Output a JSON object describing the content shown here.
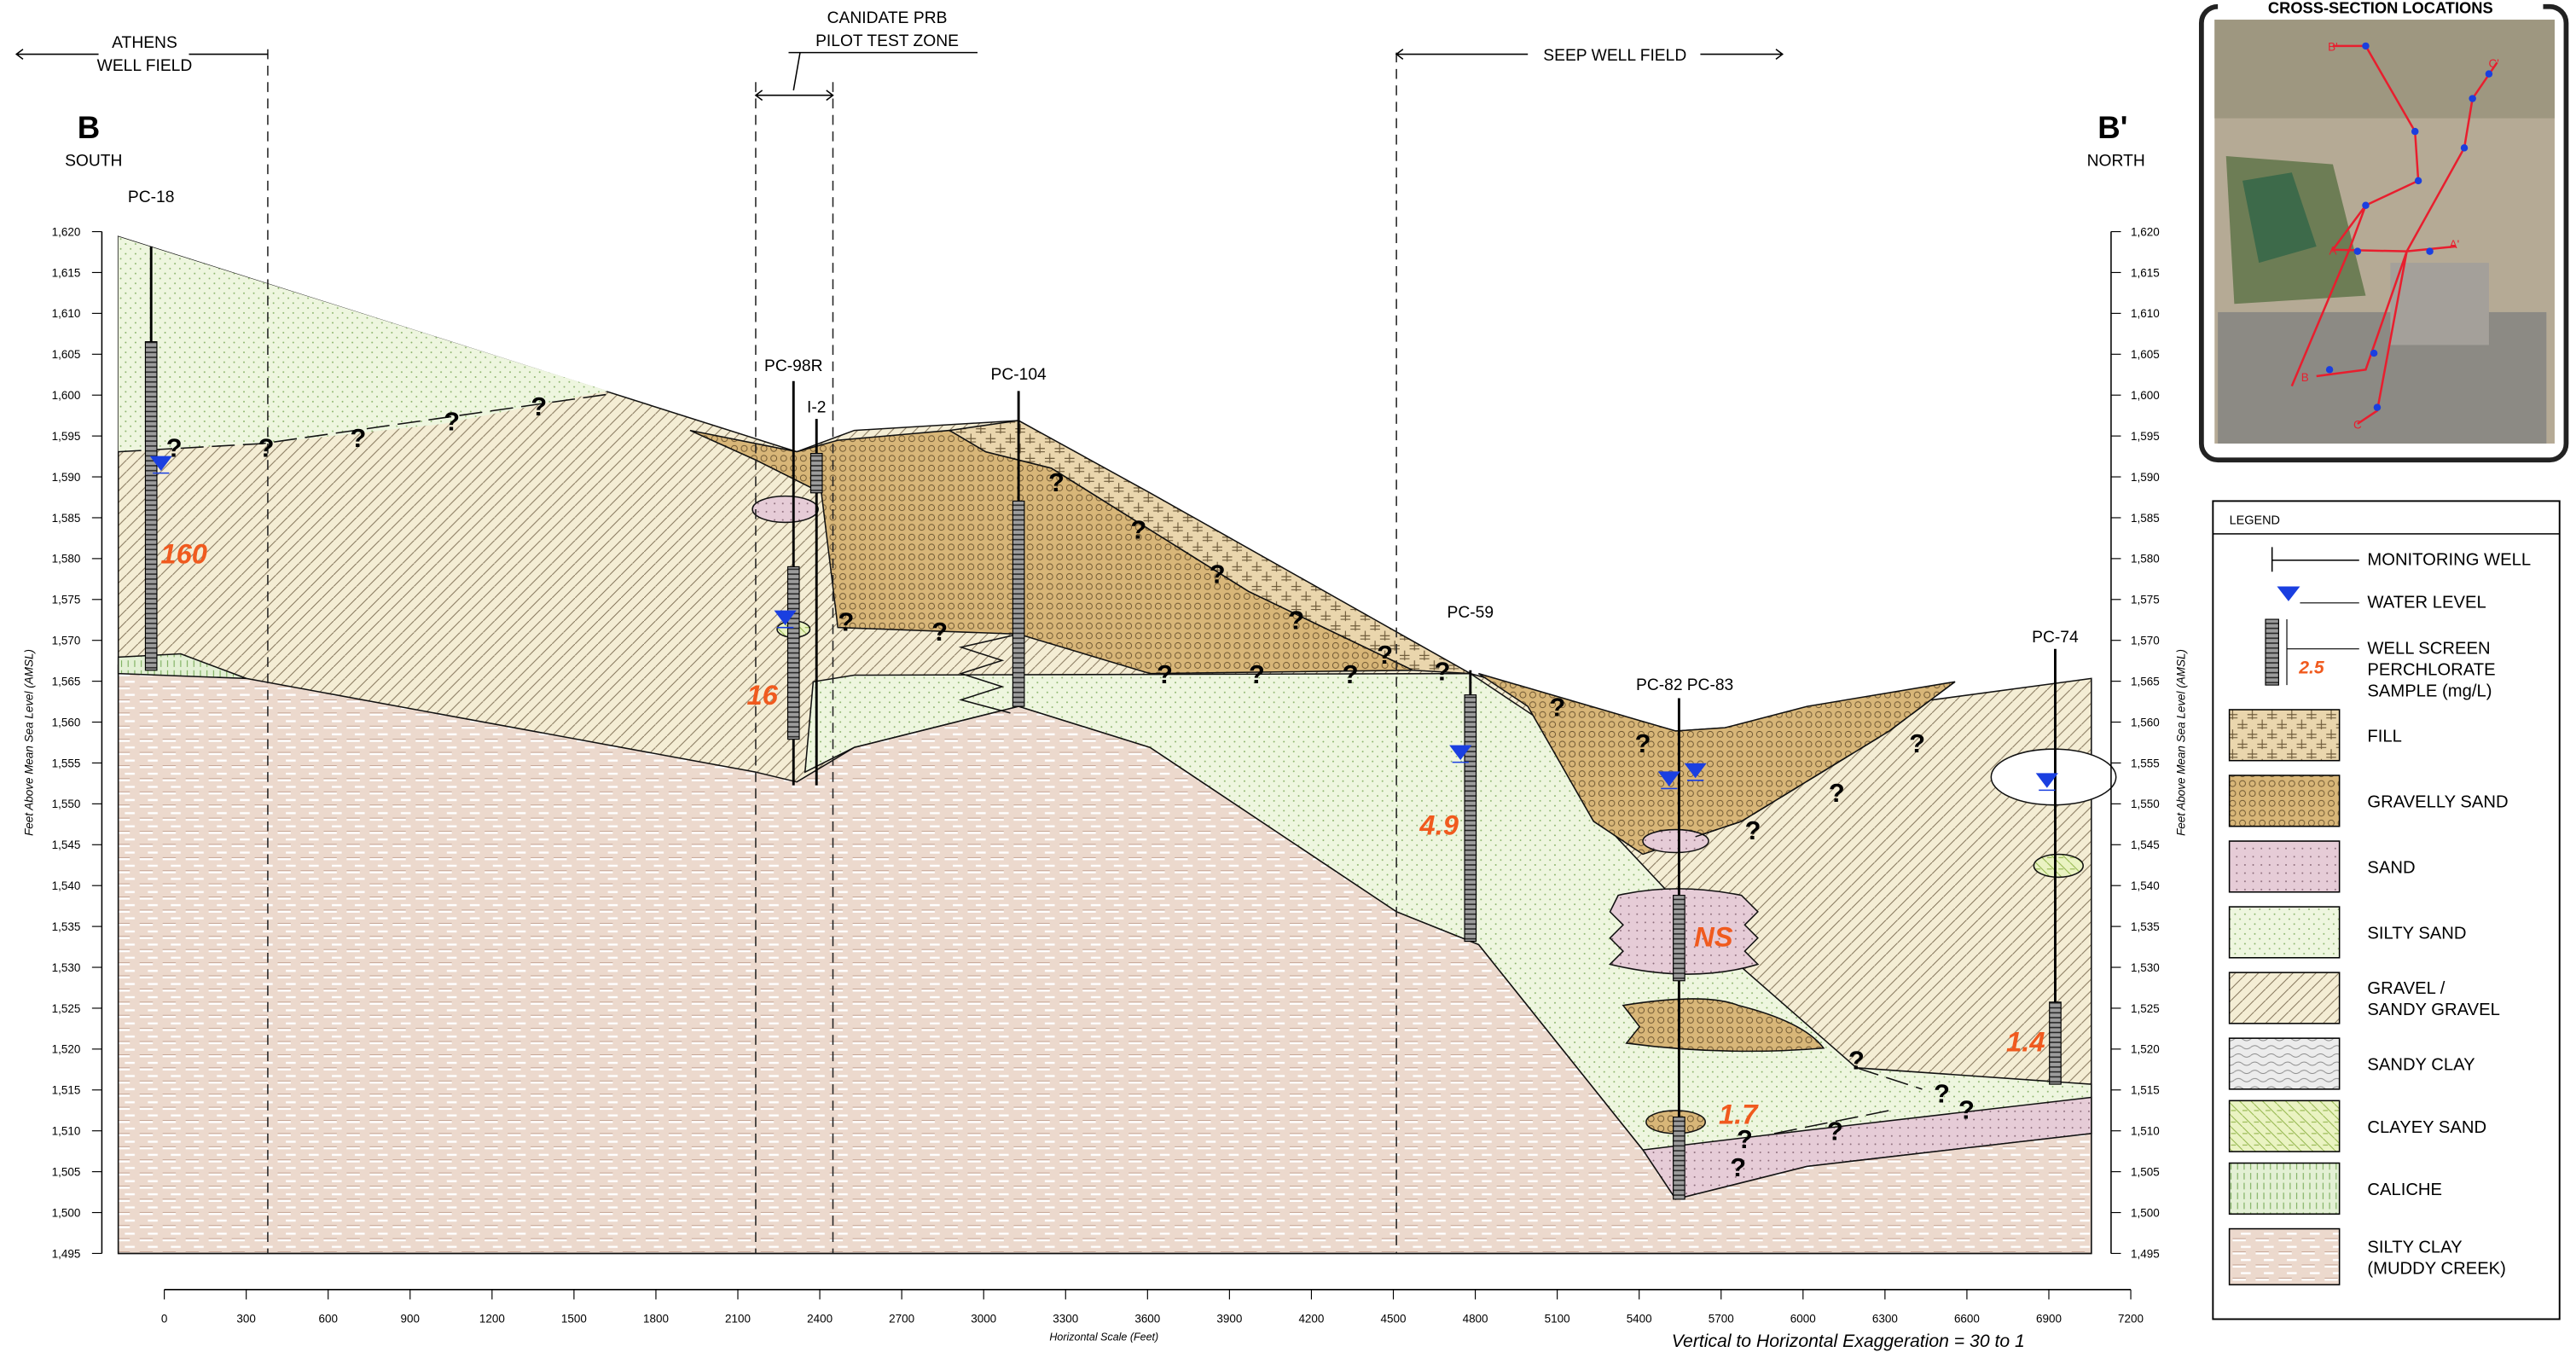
{
  "header": {
    "athens_well_field": [
      "ATHENS",
      "WELL FIELD"
    ],
    "prb_zone": [
      "CANIDATE PRB",
      "PILOT TEST ZONE"
    ],
    "seep_well_field": "SEEP WELL FIELD"
  },
  "section": {
    "start": {
      "label": "B",
      "direction": "SOUTH"
    },
    "end": {
      "label": "B'",
      "direction": "NORTH"
    }
  },
  "y_axis": {
    "title": "Feet Above Mean Sea Level (AMSL)",
    "ticks": [
      {
        "value": 1620,
        "label": "1,620"
      },
      {
        "value": 1615,
        "label": "1,615"
      },
      {
        "value": 1610,
        "label": "1,610"
      },
      {
        "value": 1605,
        "label": "1,605"
      },
      {
        "value": 1600,
        "label": "1,600"
      },
      {
        "value": 1595,
        "label": "1,595"
      },
      {
        "value": 1590,
        "label": "1,590"
      },
      {
        "value": 1585,
        "label": "1,585"
      },
      {
        "value": 1580,
        "label": "1,580"
      },
      {
        "value": 1575,
        "label": "1,575"
      },
      {
        "value": 1570,
        "label": "1,570"
      },
      {
        "value": 1565,
        "label": "1,565"
      },
      {
        "value": 1560,
        "label": "1,560"
      },
      {
        "value": 1555,
        "label": "1,555"
      },
      {
        "value": 1550,
        "label": "1,550"
      },
      {
        "value": 1545,
        "label": "1,545"
      },
      {
        "value": 1540,
        "label": "1,540"
      },
      {
        "value": 1535,
        "label": "1,535"
      },
      {
        "value": 1530,
        "label": "1,530"
      },
      {
        "value": 1525,
        "label": "1,525"
      },
      {
        "value": 1520,
        "label": "1,520"
      },
      {
        "value": 1515,
        "label": "1,515"
      },
      {
        "value": 1510,
        "label": "1,510"
      },
      {
        "value": 1505,
        "label": "1,505"
      },
      {
        "value": 1500,
        "label": "1,500"
      },
      {
        "value": 1495,
        "label": "1,495"
      }
    ]
  },
  "x_axis": {
    "title": "Horizontal Scale (Feet)",
    "ticks": [
      0,
      300,
      600,
      900,
      1200,
      1500,
      1800,
      2100,
      2400,
      2700,
      3000,
      3300,
      3600,
      3900,
      4200,
      4500,
      4800,
      5100,
      5400,
      5700,
      6000,
      6300,
      6600,
      6900,
      7200
    ]
  },
  "exaggeration": "Vertical to Horizontal Exaggeration = 30 to 1",
  "wells": [
    "PC-18",
    "PC-98R",
    "I-2",
    "PC-104",
    "PC-59",
    "PC-82",
    "PC-83",
    "PC-74"
  ],
  "perchlorate_samples": [
    160,
    16,
    4.9,
    "NS",
    1.7,
    1.4
  ],
  "uncertain_symbol": "?",
  "legend": {
    "title": "LEGEND",
    "symbols": [
      [
        "MONITORING WELL"
      ],
      [
        "WATER LEVEL"
      ],
      [
        "WELL SCREEN",
        "PERCHLORATE",
        "SAMPLE (mg/L)"
      ]
    ],
    "sample_example": 2.5,
    "units": [
      [
        "FILL"
      ],
      [
        "GRAVELLY SAND"
      ],
      [
        "SAND"
      ],
      [
        "SILTY SAND"
      ],
      [
        "GRAVEL /",
        "SANDY GRAVEL"
      ],
      [
        "SANDY CLAY"
      ],
      [
        "CLAYEY SAND"
      ],
      [
        "CALICHE"
      ],
      [
        "SILTY CLAY",
        "(MUDDY CREEK)"
      ]
    ]
  },
  "inset": {
    "title": "CROSS-SECTION LOCATIONS",
    "labels": [
      "B'",
      "C'",
      "A",
      "A'",
      "B",
      "C"
    ]
  }
}
